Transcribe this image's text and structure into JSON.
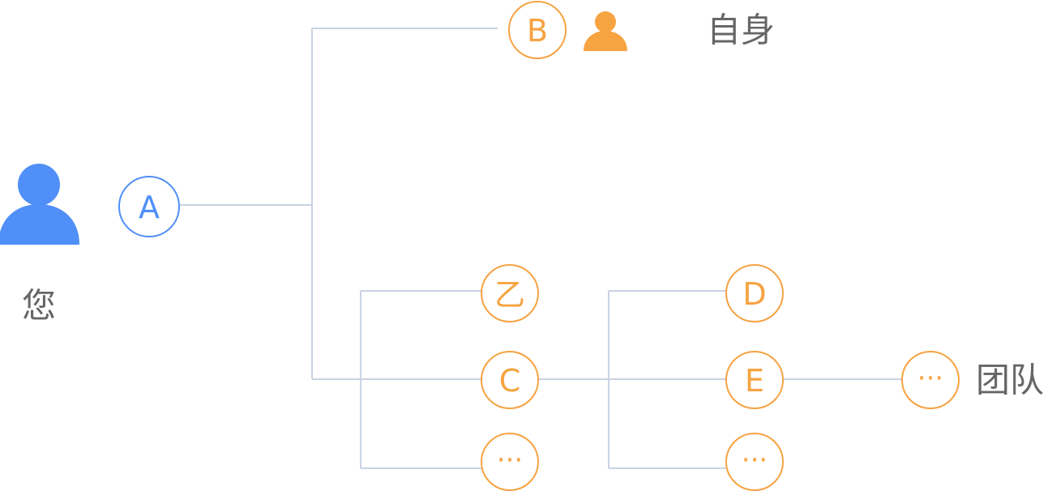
{
  "labels": {
    "user": "您",
    "self": "自身",
    "team": "团队"
  },
  "nodes": {
    "a": "A",
    "b": "B",
    "yi": "乙",
    "c": "C",
    "more1": "···",
    "d": "D",
    "e": "E",
    "more2": "···",
    "more3": "···"
  },
  "icons": {
    "user": "user-icon",
    "self": "user-icon"
  },
  "colors": {
    "primary_blue": "#4f8ff7",
    "accent_orange": "#f6a342",
    "line_gray": "#c9d3e3",
    "text_gray": "#666666"
  }
}
